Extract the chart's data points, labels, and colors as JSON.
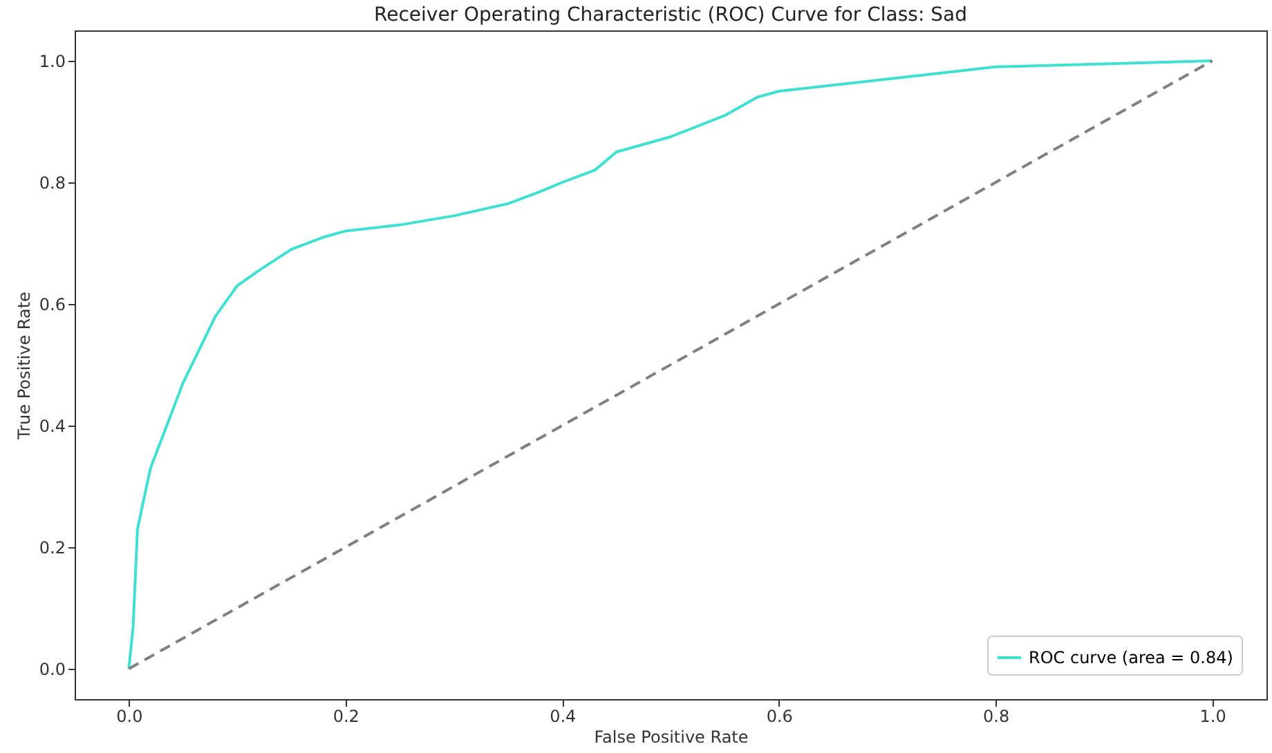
{
  "chart_data": {
    "type": "line",
    "title": "Receiver Operating Characteristic (ROC) Curve for Class: Sad",
    "xlabel": "False Positive Rate",
    "ylabel": "True Positive Rate",
    "xlim": [
      -0.05,
      1.05
    ],
    "ylim": [
      -0.05,
      1.05
    ],
    "xticks": [
      {
        "value": 0,
        "label": "0.0"
      },
      {
        "value": 0.2,
        "label": "0.2"
      },
      {
        "value": 0.4,
        "label": "0.4"
      },
      {
        "value": 0.6,
        "label": "0.6"
      },
      {
        "value": 0.8,
        "label": "0.8"
      },
      {
        "value": 1,
        "label": "1.0"
      }
    ],
    "yticks": [
      {
        "value": 0,
        "label": "0.0"
      },
      {
        "value": 0.2,
        "label": "0.2"
      },
      {
        "value": 0.4,
        "label": "0.4"
      },
      {
        "value": 0.6,
        "label": "0.6"
      },
      {
        "value": 0.8,
        "label": "0.8"
      },
      {
        "value": 1,
        "label": "1.0"
      }
    ],
    "grid": false,
    "legend": "bottom right",
    "marker": "none",
    "series": [
      {
        "name": "ROC curve (area = 0.84)",
        "color": "#40e0d0",
        "line_style": "solid",
        "x": [
          0,
          0.004,
          0.008,
          0.02,
          0.05,
          0.08,
          0.1,
          0.12,
          0.15,
          0.18,
          0.2,
          0.25,
          0.3,
          0.35,
          0.38,
          0.4,
          0.43,
          0.45,
          0.5,
          0.55,
          0.58,
          0.6,
          0.7,
          0.8,
          0.9,
          1
        ],
        "values": [
          0,
          0.07,
          0.23,
          0.33,
          0.47,
          0.58,
          0.63,
          0.655,
          0.69,
          0.71,
          0.72,
          0.73,
          0.745,
          0.765,
          0.785,
          0.8,
          0.82,
          0.85,
          0.875,
          0.91,
          0.94,
          0.95,
          0.97,
          0.99,
          0.995,
          1
        ]
      },
      {
        "color": "#808080",
        "line_style": "dashed",
        "x": [
          0,
          1
        ],
        "values": [
          0,
          1
        ]
      }
    ]
  }
}
